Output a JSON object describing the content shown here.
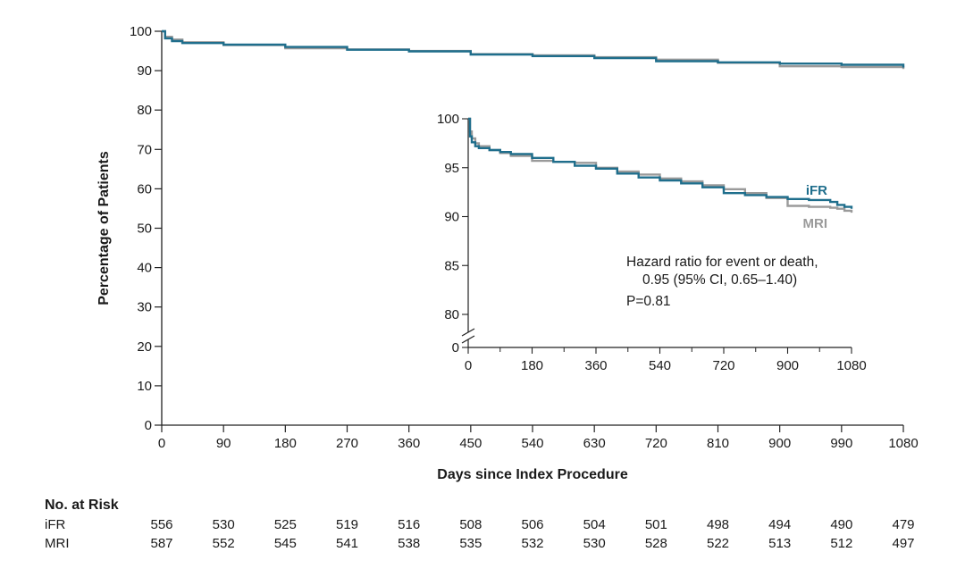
{
  "colors": {
    "iFR": "#1f6e8c",
    "MRI": "#9a9a9a",
    "axis": "#222222"
  },
  "chart_data": [
    {
      "id": "main",
      "type": "line",
      "xlabel": "Days since Index Procedure",
      "ylabel": "Percentage of Patients",
      "xlim": [
        0,
        1080
      ],
      "ylim": [
        0,
        100
      ],
      "xticks": [
        0,
        90,
        180,
        270,
        360,
        450,
        540,
        630,
        720,
        810,
        900,
        990,
        1080
      ],
      "yticks": [
        0,
        10,
        20,
        30,
        40,
        50,
        60,
        70,
        80,
        90,
        100
      ],
      "grid": false,
      "series": [
        {
          "name": "iFR",
          "x": [
            0,
            5,
            15,
            30,
            90,
            180,
            270,
            360,
            450,
            540,
            630,
            720,
            810,
            900,
            990,
            1080
          ],
          "y": [
            100,
            98.2,
            97.5,
            97.0,
            96.6,
            96.0,
            95.3,
            94.9,
            94.1,
            93.7,
            93.2,
            92.4,
            92.1,
            91.8,
            91.5,
            90.8
          ]
        },
        {
          "name": "MRI",
          "x": [
            0,
            5,
            15,
            30,
            90,
            180,
            270,
            360,
            450,
            540,
            630,
            720,
            810,
            900,
            990,
            1080
          ],
          "y": [
            100,
            98.6,
            97.9,
            97.2,
            96.5,
            95.7,
            95.4,
            95.0,
            94.2,
            93.9,
            93.4,
            92.8,
            92.0,
            91.1,
            90.9,
            90.4
          ]
        }
      ]
    },
    {
      "id": "inset",
      "type": "line",
      "xlim": [
        0,
        1080
      ],
      "ylim": [
        80,
        100
      ],
      "axis_break": true,
      "xticks": [
        0,
        180,
        360,
        540,
        720,
        900,
        1080
      ],
      "xminorticks": [
        90,
        270,
        450,
        630,
        810,
        990
      ],
      "yticks": [
        0,
        80,
        85,
        90,
        95,
        100
      ],
      "grid": false,
      "series": [
        {
          "name": "iFR",
          "label": "iFR",
          "x": [
            0,
            5,
            10,
            20,
            30,
            60,
            90,
            120,
            180,
            240,
            300,
            360,
            420,
            480,
            540,
            600,
            660,
            720,
            780,
            840,
            900,
            960,
            1020,
            1040,
            1060,
            1080
          ],
          "y": [
            100,
            98.2,
            97.6,
            97.2,
            97.0,
            96.8,
            96.6,
            96.4,
            96.0,
            95.6,
            95.2,
            94.9,
            94.4,
            94.0,
            93.7,
            93.4,
            93.0,
            92.4,
            92.2,
            92.0,
            91.8,
            91.7,
            91.5,
            91.2,
            91.0,
            90.8
          ]
        },
        {
          "name": "MRI",
          "label": "MRI",
          "x": [
            0,
            5,
            10,
            20,
            30,
            60,
            90,
            120,
            180,
            240,
            300,
            360,
            420,
            480,
            540,
            600,
            660,
            720,
            780,
            840,
            900,
            960,
            1020,
            1040,
            1060,
            1080
          ],
          "y": [
            100,
            98.7,
            98.0,
            97.5,
            97.2,
            96.8,
            96.5,
            96.2,
            95.7,
            95.6,
            95.5,
            95.0,
            94.6,
            94.3,
            93.9,
            93.6,
            93.2,
            92.8,
            92.4,
            91.9,
            91.1,
            91.0,
            90.9,
            90.8,
            90.6,
            90.4
          ]
        }
      ],
      "annotation": {
        "line1": "Hazard ratio for event or death,",
        "line2": "0.95 (95% CI, 0.65–1.40)",
        "line3": "P=0.81"
      }
    }
  ],
  "risk_table": {
    "title": "No. at Risk",
    "rows": [
      {
        "label": "iFR",
        "values": [
          556,
          530,
          525,
          519,
          516,
          508,
          506,
          504,
          501,
          498,
          494,
          490,
          479
        ]
      },
      {
        "label": "MRI",
        "values": [
          587,
          552,
          545,
          541,
          538,
          535,
          532,
          530,
          528,
          522,
          513,
          512,
          497
        ]
      }
    ]
  }
}
